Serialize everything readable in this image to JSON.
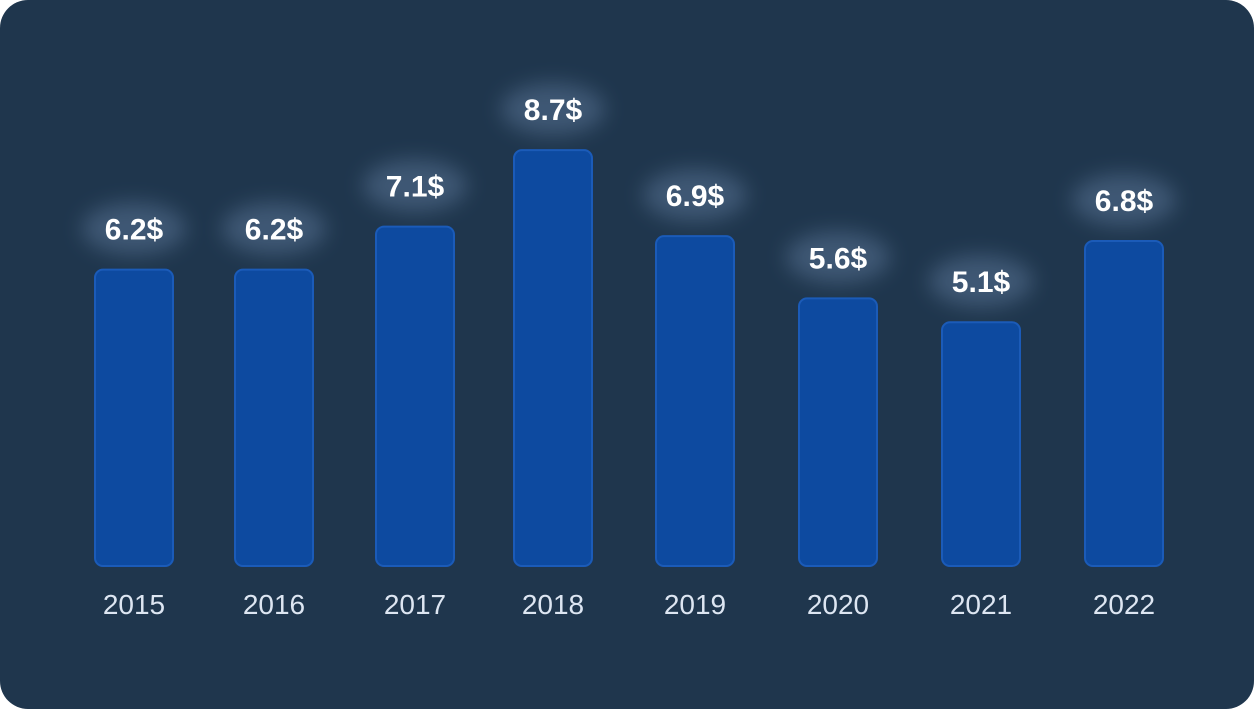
{
  "colors": {
    "background": "#1f364d",
    "bar": "#0d4aa0",
    "value_text": "#ffffff",
    "category_text": "#dde6f2"
  },
  "chart_data": {
    "type": "bar",
    "categories": [
      "2015",
      "2016",
      "2017",
      "2018",
      "2019",
      "2020",
      "2021",
      "2022"
    ],
    "values": [
      6.2,
      6.2,
      7.1,
      8.7,
      6.9,
      5.6,
      5.1,
      6.8
    ],
    "value_labels": [
      "6.2$",
      "6.2$",
      "7.1$",
      "8.7$",
      "6.9$",
      "5.6$",
      "5.1$",
      "6.8$"
    ],
    "title": "",
    "xlabel": "",
    "ylabel": "",
    "grid": false,
    "legend": "none"
  }
}
